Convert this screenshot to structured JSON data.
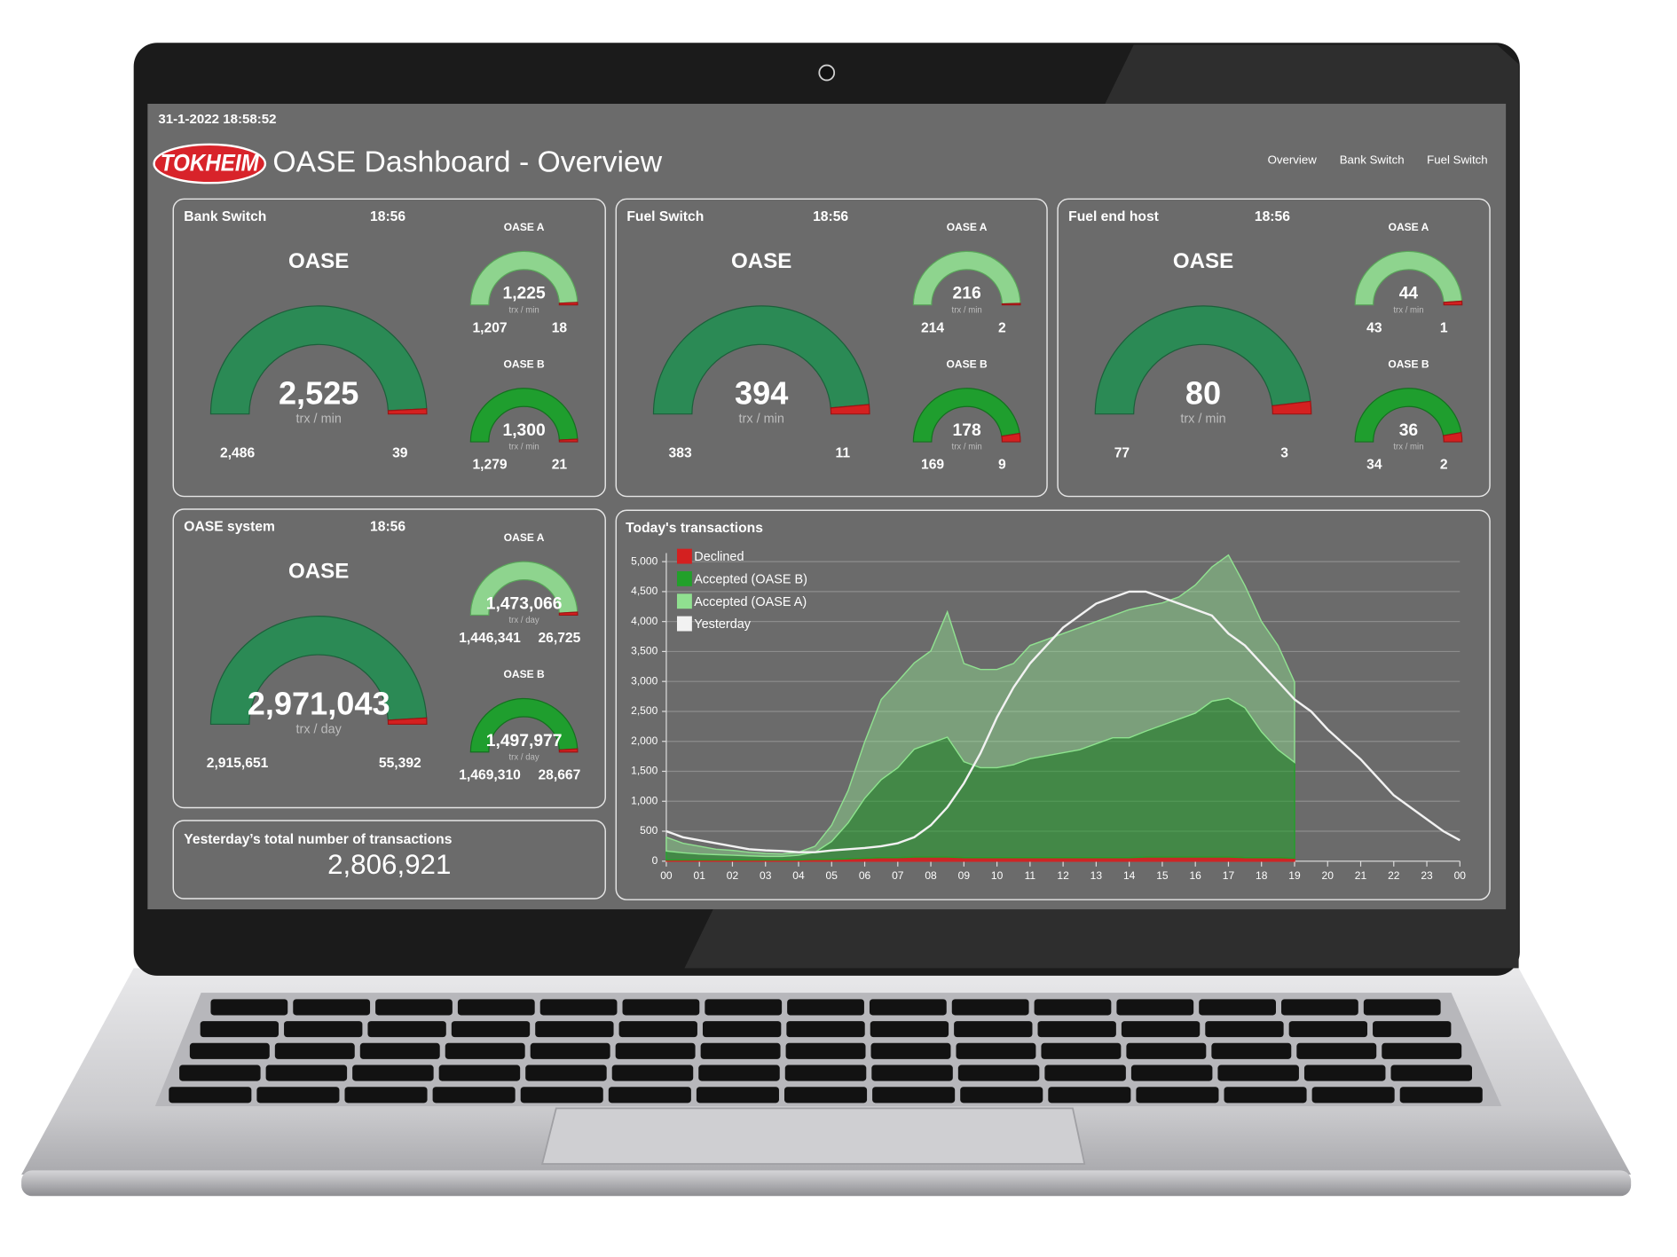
{
  "header": {
    "datetime": "31-1-2022 18:58:52",
    "logo": "TOKHEIM",
    "title": "OASE Dashboard - Overview"
  },
  "nav": [
    "Overview",
    "Bank Switch",
    "Fuel Switch"
  ],
  "panels": [
    {
      "title": "Bank Switch",
      "time": "18:56",
      "main": {
        "label": "OASE",
        "total": {
          "value": 2525,
          "label": "2,525"
        },
        "unit": "trx / min",
        "accepted": {
          "value": 2486,
          "label": "2,486"
        },
        "declined": 39
      },
      "a": {
        "label": "OASE A",
        "total": {
          "value": 1225,
          "label": "1,225"
        },
        "unit": "trx / min",
        "accepted": {
          "value": 1207,
          "label": "1,207"
        },
        "declined": 18
      },
      "b": {
        "label": "OASE B",
        "total": {
          "value": 1300,
          "label": "1,300"
        },
        "unit": "trx / min",
        "accepted": {
          "value": 1279,
          "label": "1,279"
        },
        "declined": 21
      }
    },
    {
      "title": "Fuel Switch",
      "time": "18:56",
      "main": {
        "label": "OASE",
        "total": 394,
        "unit": "trx / min",
        "accepted": 383,
        "declined": 11
      },
      "a": {
        "label": "OASE A",
        "total": 216,
        "unit": "trx / min",
        "accepted": 214,
        "declined": 2
      },
      "b": {
        "label": "OASE B",
        "total": 178,
        "unit": "trx / min",
        "accepted": 169,
        "declined": 9
      }
    },
    {
      "title": "Fuel end host",
      "time": "18:56",
      "main": {
        "label": "OASE",
        "total": 80,
        "unit": "trx / min",
        "accepted": 77,
        "declined": 3
      },
      "a": {
        "label": "OASE A",
        "total": 44,
        "unit": "trx / min",
        "accepted": 43,
        "declined": 1
      },
      "b": {
        "label": "OASE B",
        "total": 36,
        "unit": "trx / min",
        "accepted": 34,
        "declined": 2
      }
    },
    {
      "title": "OASE system",
      "time": "18:56",
      "main": {
        "label": "OASE",
        "total": {
          "value": 2971043,
          "label": "2,971,043"
        },
        "unit": "trx / day",
        "accepted": {
          "value": 2915651,
          "label": "2,915,651"
        },
        "declined": {
          "value": 55392,
          "label": "55,392"
        }
      },
      "a": {
        "label": "OASE A",
        "total": {
          "value": 1473066,
          "label": "1,473,066"
        },
        "unit": "trx / day",
        "accepted": {
          "value": 1446341,
          "label": "1,446,341"
        },
        "declined": {
          "value": 26725,
          "label": "26,725"
        }
      },
      "b": {
        "label": "OASE B",
        "total": {
          "value": 1497977,
          "label": "1,497,977"
        },
        "unit": "trx / day",
        "accepted": {
          "value": 1469310,
          "label": "1,469,310"
        },
        "declined": {
          "value": 28667,
          "label": "28,667"
        }
      }
    }
  ],
  "yesterday_total": {
    "label": "Yesterday’s total number of transactions",
    "value": {
      "value": 2806921,
      "label": "2,806,921"
    }
  },
  "chart_data": {
    "type": "area",
    "title": "Today's transactions",
    "stacked": true,
    "grid": true,
    "legend": "top-left",
    "x": [
      0,
      0.5,
      1,
      1.5,
      2,
      2.5,
      3,
      3.5,
      4,
      4.5,
      5,
      5.5,
      6,
      6.5,
      7,
      7.5,
      8,
      8.5,
      9,
      9.5,
      10,
      10.5,
      11,
      11.5,
      12,
      12.5,
      13,
      13.5,
      14,
      14.5,
      15,
      15.5,
      16,
      16.5,
      17,
      17.5,
      18,
      18.5,
      19,
      19.5,
      20,
      20.5,
      21,
      21.5,
      22,
      22.5,
      23,
      23.5,
      24
    ],
    "xlim": [
      0,
      24
    ],
    "xticks": [
      {
        "value": 0,
        "label": "00"
      },
      {
        "value": 1,
        "label": "01"
      },
      {
        "value": 2,
        "label": "02"
      },
      {
        "value": 3,
        "label": "03"
      },
      {
        "value": 4,
        "label": "04"
      },
      {
        "value": 5,
        "label": "05"
      },
      {
        "value": 6,
        "label": "06"
      },
      {
        "value": 7,
        "label": "07"
      },
      {
        "value": 8,
        "label": "08"
      },
      {
        "value": 9,
        "label": "09"
      },
      {
        "value": 10,
        "label": "10"
      },
      {
        "value": 11,
        "label": "11"
      },
      {
        "value": 12,
        "label": "12"
      },
      {
        "value": 13,
        "label": "13"
      },
      {
        "value": 14,
        "label": "14"
      },
      {
        "value": 15,
        "label": "15"
      },
      {
        "value": 16,
        "label": "16"
      },
      {
        "value": 17,
        "label": "17"
      },
      {
        "value": 18,
        "label": "18"
      },
      {
        "value": 19,
        "label": "19"
      },
      {
        "value": 20,
        "label": "20"
      },
      {
        "value": 21,
        "label": "21"
      },
      {
        "value": 22,
        "label": "22"
      },
      {
        "value": 23,
        "label": "23"
      },
      {
        "value": 24,
        "label": "00"
      }
    ],
    "ylim": [
      0,
      5000
    ],
    "yticks": [
      0,
      500,
      {
        "value": 1000,
        "label": "1,000"
      },
      {
        "value": 1500,
        "label": "1,500"
      },
      {
        "value": 2000,
        "label": "2,000"
      },
      {
        "value": 2500,
        "label": "2,500"
      },
      {
        "value": 3000,
        "label": "3,000"
      },
      {
        "value": 3500,
        "label": "3,500"
      },
      {
        "value": 4000,
        "label": "4,000"
      },
      {
        "value": 4500,
        "label": "4,500"
      },
      {
        "value": 5000,
        "label": "5,000"
      }
    ],
    "series": [
      {
        "name": "Declined",
        "color": "#d42020",
        "values": [
          20,
          20,
          20,
          20,
          20,
          20,
          20,
          20,
          20,
          30,
          30,
          40,
          50,
          60,
          60,
          70,
          70,
          70,
          60,
          60,
          60,
          60,
          60,
          60,
          60,
          60,
          60,
          60,
          60,
          70,
          70,
          70,
          70,
          70,
          70,
          60,
          60,
          60,
          50,
          null,
          null,
          null,
          null,
          null,
          null,
          null,
          null,
          null,
          null
        ]
      },
      {
        "name": "Accepted (OASE B)",
        "color": "#22a02a",
        "values": [
          150,
          120,
          100,
          90,
          80,
          70,
          60,
          60,
          80,
          120,
          300,
          600,
          1000,
          1300,
          1500,
          1800,
          1900,
          2000,
          1600,
          1500,
          1500,
          1550,
          1650,
          1700,
          1750,
          1800,
          1900,
          2000,
          2000,
          2100,
          2200,
          2300,
          2400,
          2600,
          2650,
          2500,
          2100,
          1800,
          1600,
          null,
          null,
          null,
          null,
          null,
          null,
          null,
          null,
          null,
          null
        ]
      },
      {
        "name": "Accepted (OASE A)",
        "color": "#90e090",
        "values": [
          230,
          160,
          130,
          90,
          80,
          60,
          50,
          40,
          50,
          100,
          270,
          540,
          940,
          1340,
          1440,
          1440,
          1540,
          2090,
          1640,
          1640,
          1640,
          1690,
          1890,
          1940,
          1990,
          2040,
          2040,
          2040,
          2140,
          2090,
          2040,
          2040,
          2140,
          2240,
          2390,
          2040,
          1840,
          1740,
          1340,
          null,
          null,
          null,
          null,
          null,
          null,
          null,
          null,
          null,
          null
        ]
      },
      {
        "name": "Yesterday",
        "color": "#f2f2f2",
        "type": "line",
        "values": [
          500,
          400,
          350,
          300,
          250,
          200,
          180,
          170,
          150,
          150,
          180,
          200,
          220,
          250,
          300,
          400,
          600,
          900,
          1300,
          1800,
          2400,
          2900,
          3300,
          3600,
          3900,
          4100,
          4300,
          4400,
          4500,
          4500,
          4400,
          4300,
          4200,
          4100,
          3800,
          3600,
          3300,
          3000,
          2700,
          2500,
          2200,
          1950,
          1700,
          1400,
          1100,
          900,
          700,
          500,
          350
        ]
      }
    ]
  }
}
